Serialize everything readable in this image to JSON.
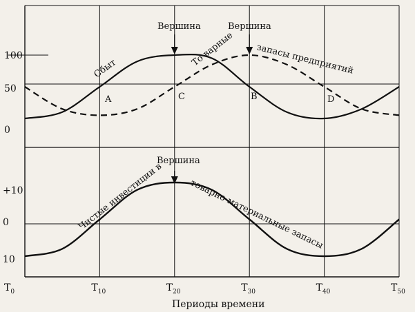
{
  "chart_data": [
    {
      "type": "line",
      "panel": "top",
      "x": [
        0,
        10,
        20,
        30,
        40,
        50
      ],
      "x_ticks": [
        {
          "main": "T",
          "sub": "0"
        },
        {
          "main": "T",
          "sub": "10"
        },
        {
          "main": "T",
          "sub": "20"
        },
        {
          "main": "T",
          "sub": "30"
        },
        {
          "main": "T",
          "sub": "40"
        },
        {
          "main": "T",
          "sub": "50"
        }
      ],
      "y_ticks": [
        "100",
        "50",
        "0"
      ],
      "ylim": [
        0,
        100
      ],
      "series": [
        {
          "name": "Сбыт",
          "style": "solid",
          "points": [
            [
              0,
              0
            ],
            [
              5,
              10
            ],
            [
              10,
              50
            ],
            [
              15,
              90
            ],
            [
              20,
              100
            ],
            [
              25,
              95
            ],
            [
              30,
              50
            ],
            [
              35,
              10
            ],
            [
              40,
              0
            ],
            [
              45,
              15
            ],
            [
              50,
              50
            ]
          ]
        },
        {
          "name": "Товарные запасы предприятий",
          "style": "dashed",
          "points": [
            [
              0,
              50
            ],
            [
              5,
              15
            ],
            [
              10,
              5
            ],
            [
              15,
              15
            ],
            [
              20,
              50
            ],
            [
              25,
              85
            ],
            [
              30,
              100
            ],
            [
              35,
              85
            ],
            [
              40,
              50
            ],
            [
              45,
              15
            ],
            [
              50,
              5
            ]
          ]
        }
      ],
      "annotations": {
        "peak_sales": "Вершина",
        "peak_inventory": "Вершина",
        "point_a": "A",
        "point_b": "B",
        "point_c": "C",
        "point_d": "D",
        "sales_label": "Сбыт",
        "inventory_label_1": "То варные",
        "inventory_label_2": "запасы предприятий"
      }
    },
    {
      "type": "line",
      "panel": "bottom",
      "y_ticks": [
        "+10",
        "0",
        "10"
      ],
      "ylim": [
        -10,
        10
      ],
      "series": [
        {
          "name": "Чистые инвестиции в товарно-материальные запасы",
          "style": "solid",
          "points": [
            [
              0,
              -10
            ],
            [
              5,
              -8
            ],
            [
              10,
              0
            ],
            [
              15,
              8
            ],
            [
              20,
              10
            ],
            [
              25,
              8
            ],
            [
              30,
              0
            ],
            [
              35,
              -8
            ],
            [
              40,
              -10
            ],
            [
              45,
              -8
            ],
            [
              50,
              0
            ]
          ]
        }
      ],
      "annotations": {
        "peak": "Вершина",
        "label_1": "Чистые инвестиции в",
        "label_2": "товарно-материальные запасы"
      },
      "xlabel": "Периоды времени"
    }
  ]
}
